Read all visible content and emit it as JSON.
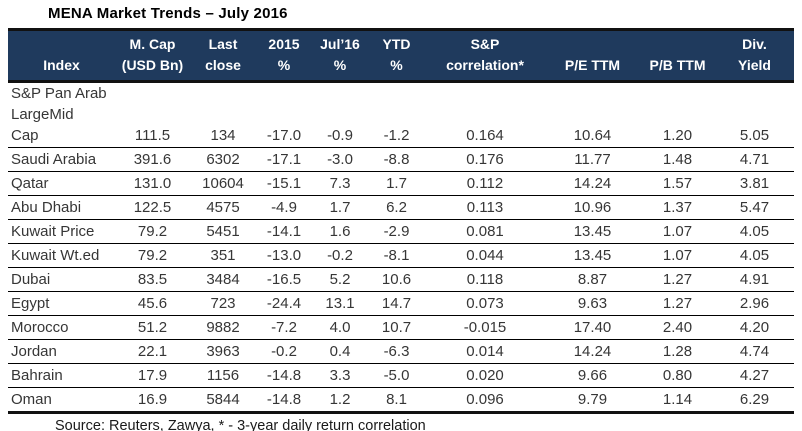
{
  "title": "MENA Market Trends – July 2016",
  "colors": {
    "header_bg": "#1f3a5d",
    "header_text": "#ffffff",
    "border_strong": "#111111",
    "row_line": "#000000",
    "body_text": "#363636"
  },
  "table": {
    "columns": [
      {
        "line1": "",
        "line2": "Index"
      },
      {
        "line1": "M. Cap",
        "line2": "(USD Bn)"
      },
      {
        "line1": "Last",
        "line2": "close"
      },
      {
        "line1": "2015",
        "line2": "%"
      },
      {
        "line1": "Jul’16",
        "line2": "%"
      },
      {
        "line1": "YTD",
        "line2": "%"
      },
      {
        "line1": "S&P",
        "line2": "correlation*"
      },
      {
        "line1": "",
        "line2": "P/E TTM"
      },
      {
        "line1": "",
        "line2": "P/B TTM"
      },
      {
        "line1": "Div.",
        "line2": "Yield"
      }
    ],
    "rows": [
      {
        "index": "S&P Pan Arab\nLargeMid\nCap",
        "values": [
          "111.5",
          "134",
          "-17.0",
          "-0.9",
          "-1.2",
          "0.164",
          "10.64",
          "1.20",
          "5.05"
        ]
      },
      {
        "index": "Saudi Arabia",
        "values": [
          "391.6",
          "6302",
          "-17.1",
          "-3.0",
          "-8.8",
          "0.176",
          "11.77",
          "1.48",
          "4.71"
        ]
      },
      {
        "index": "Qatar",
        "values": [
          "131.0",
          "10604",
          "-15.1",
          "7.3",
          "1.7",
          "0.112",
          "14.24",
          "1.57",
          "3.81"
        ]
      },
      {
        "index": "Abu Dhabi",
        "values": [
          "122.5",
          "4575",
          "-4.9",
          "1.7",
          "6.2",
          "0.113",
          "10.96",
          "1.37",
          "5.47"
        ]
      },
      {
        "index": "Kuwait Price",
        "values": [
          "79.2",
          "5451",
          "-14.1",
          "1.6",
          "-2.9",
          "0.081",
          "13.45",
          "1.07",
          "4.05"
        ]
      },
      {
        "index": "Kuwait Wt.ed",
        "values": [
          "79.2",
          "351",
          "-13.0",
          "-0.2",
          "-8.1",
          "0.044",
          "13.45",
          "1.07",
          "4.05"
        ]
      },
      {
        "index": "Dubai",
        "values": [
          "83.5",
          "3484",
          "-16.5",
          "5.2",
          "10.6",
          "0.118",
          "8.87",
          "1.27",
          "4.91"
        ]
      },
      {
        "index": "Egypt",
        "values": [
          "45.6",
          "723",
          "-24.4",
          "13.1",
          "14.7",
          "0.073",
          "9.63",
          "1.27",
          "2.96"
        ]
      },
      {
        "index": "Morocco",
        "values": [
          "51.2",
          "9882",
          "-7.2",
          "4.0",
          "10.7",
          "-0.015",
          "17.40",
          "2.40",
          "4.20"
        ]
      },
      {
        "index": "Jordan",
        "values": [
          "22.1",
          "3963",
          "-0.2",
          "0.4",
          "-6.3",
          "0.014",
          "14.24",
          "1.28",
          "4.74"
        ]
      },
      {
        "index": "Bahrain",
        "values": [
          "17.9",
          "1156",
          "-14.8",
          "3.3",
          "-5.0",
          "0.020",
          "9.66",
          "0.80",
          "4.27"
        ]
      },
      {
        "index": "Oman",
        "values": [
          "16.9",
          "5844",
          "-14.8",
          "1.2",
          "8.1",
          "0.096",
          "9.79",
          "1.14",
          "6.29"
        ]
      }
    ]
  },
  "footer": {
    "source": "Source: Reuters, Zawya, * - 3-year daily return correlation"
  },
  "chart_data": {
    "type": "table",
    "title": "MENA Market Trends – July 2016",
    "columns": [
      "Index",
      "M. Cap (USD Bn)",
      "Last close",
      "2015 %",
      "Jul’16 %",
      "YTD %",
      "S&P correlation*",
      "P/E TTM",
      "P/B TTM",
      "Div. Yield"
    ],
    "rows": [
      [
        "S&P Pan Arab LargeMid Cap",
        111.5,
        134,
        -17.0,
        -0.9,
        -1.2,
        0.164,
        10.64,
        1.2,
        5.05
      ],
      [
        "Saudi Arabia",
        391.6,
        6302,
        -17.1,
        -3.0,
        -8.8,
        0.176,
        11.77,
        1.48,
        4.71
      ],
      [
        "Qatar",
        131.0,
        10604,
        -15.1,
        7.3,
        1.7,
        0.112,
        14.24,
        1.57,
        3.81
      ],
      [
        "Abu Dhabi",
        122.5,
        4575,
        -4.9,
        1.7,
        6.2,
        0.113,
        10.96,
        1.37,
        5.47
      ],
      [
        "Kuwait Price",
        79.2,
        5451,
        -14.1,
        1.6,
        -2.9,
        0.081,
        13.45,
        1.07,
        4.05
      ],
      [
        "Kuwait Wt.ed",
        79.2,
        351,
        -13.0,
        -0.2,
        -8.1,
        0.044,
        13.45,
        1.07,
        4.05
      ],
      [
        "Dubai",
        83.5,
        3484,
        -16.5,
        5.2,
        10.6,
        0.118,
        8.87,
        1.27,
        4.91
      ],
      [
        "Egypt",
        45.6,
        723,
        -24.4,
        13.1,
        14.7,
        0.073,
        9.63,
        1.27,
        2.96
      ],
      [
        "Morocco",
        51.2,
        9882,
        -7.2,
        4.0,
        10.7,
        -0.015,
        17.4,
        2.4,
        4.2
      ],
      [
        "Jordan",
        22.1,
        3963,
        -0.2,
        0.4,
        -6.3,
        0.014,
        14.24,
        1.28,
        4.74
      ],
      [
        "Bahrain",
        17.9,
        1156,
        -14.8,
        3.3,
        -5.0,
        0.02,
        9.66,
        0.8,
        4.27
      ],
      [
        "Oman",
        16.9,
        5844,
        -14.8,
        1.2,
        8.1,
        0.096,
        9.79,
        1.14,
        6.29
      ]
    ],
    "notes": "Source: Reuters, Zawya, * - 3-year daily return correlation"
  }
}
